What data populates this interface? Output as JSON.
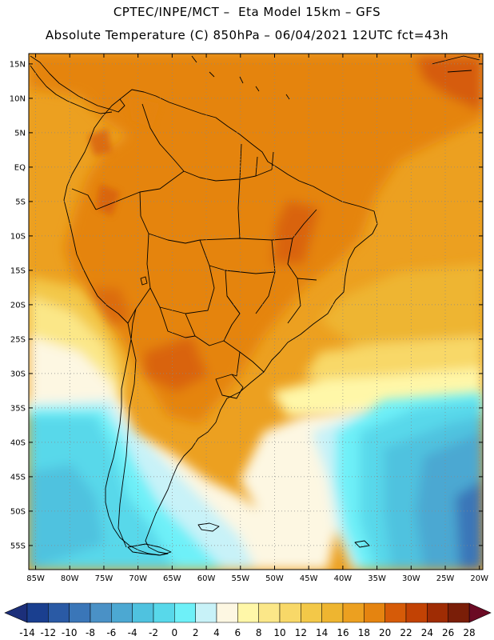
{
  "header": {
    "line1": "CPTEC/INPE/MCT –  Eta Model 15km – GFS",
    "line2": "Absolute Temperature (C) 850hPa – 06/04/2021 12UTC fct=43h"
  },
  "map": {
    "region": "South America",
    "lat_labels": [
      "15N",
      "10N",
      "5N",
      "EQ",
      "5S",
      "10S",
      "15S",
      "20S",
      "25S",
      "30S",
      "35S",
      "40S",
      "45S",
      "50S",
      "55S"
    ],
    "lon_labels": [
      "85W",
      "80W",
      "75W",
      "70W",
      "65W",
      "60W",
      "55W",
      "50W",
      "45W",
      "40W",
      "35W",
      "30W",
      "25W",
      "20W"
    ],
    "lat_values": [
      15,
      10,
      5,
      0,
      -5,
      -10,
      -15,
      -20,
      -25,
      -30,
      -35,
      -40,
      -45,
      -50,
      -55
    ],
    "lon_values": [
      -85,
      -80,
      -75,
      -70,
      -65,
      -60,
      -55,
      -50,
      -45,
      -40,
      -35,
      -30,
      -25,
      -20
    ],
    "lat_range": [
      -58.5,
      16.5
    ],
    "lon_range": [
      -86,
      -19.5
    ],
    "gridlines": true
  },
  "colorbar": {
    "labels": [
      "-14",
      "-12",
      "-10",
      "-8",
      "-6",
      "-4",
      "-2",
      "0",
      "2",
      "4",
      "6",
      "8",
      "10",
      "12",
      "14",
      "16",
      "18",
      "20",
      "22",
      "24",
      "26",
      "28"
    ],
    "colors": [
      "#1a3f8f",
      "#2a5aa5",
      "#3a76b8",
      "#4a91c6",
      "#4ca8d2",
      "#4fc2df",
      "#58d8ea",
      "#6ef0f8",
      "#c8f2f8",
      "#fdf7e2",
      "#fff7a8",
      "#fbe788",
      "#f8d868",
      "#f3c848",
      "#eeb530",
      "#eca020",
      "#e58410",
      "#d65b08",
      "#c24204",
      "#9f2c04",
      "#7a1e08"
    ],
    "min_color": "#1c2f7a",
    "max_color": "#6b0a24"
  }
}
